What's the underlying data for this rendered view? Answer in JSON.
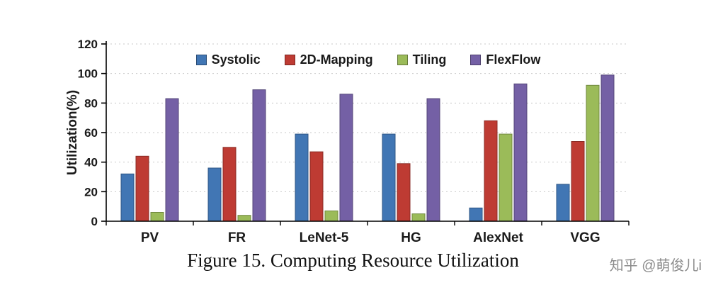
{
  "figure": {
    "caption": "Figure 15. Computing Resource Utilization",
    "watermark": "知乎 @萌俊儿i"
  },
  "chart_data": {
    "type": "bar",
    "title": "",
    "xlabel": "",
    "ylabel": "Utilization(%)",
    "ylim": [
      0,
      120
    ],
    "ytick_step": 20,
    "grid": "horizontal-dashed",
    "legend_position": "top-inside",
    "categories": [
      "PV",
      "FR",
      "LeNet-5",
      "HG",
      "AlexNet",
      "VGG"
    ],
    "series": [
      {
        "name": "Systolic",
        "color": "#4176B4",
        "edge": "#2E5684",
        "values": [
          32,
          36,
          59,
          59,
          9,
          25
        ]
      },
      {
        "name": "2D-Mapping",
        "color": "#BE3B33",
        "edge": "#8A2B25",
        "values": [
          44,
          50,
          47,
          39,
          68,
          54
        ]
      },
      {
        "name": "Tiling",
        "color": "#9BBB59",
        "edge": "#71893F",
        "values": [
          6,
          4,
          7,
          5,
          59,
          92
        ]
      },
      {
        "name": "FlexFlow",
        "color": "#7460A5",
        "edge": "#544678",
        "values": [
          83,
          89,
          86,
          83,
          93,
          99
        ]
      }
    ]
  }
}
